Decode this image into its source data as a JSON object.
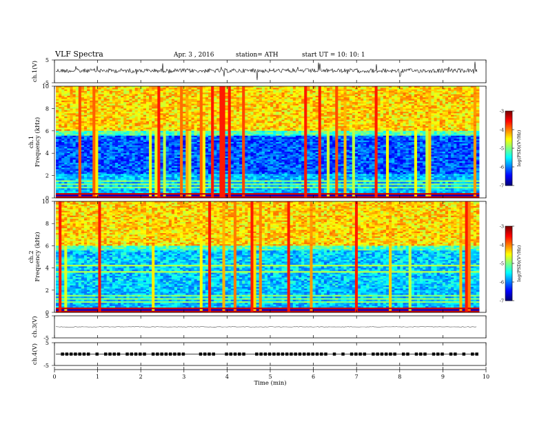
{
  "header": {
    "title": "VLF  Spectra",
    "date": "Apr. 3   , 2016",
    "station": "station= ATH",
    "start": "start  UT  =    10: 10: 1"
  },
  "chart_data": [
    {
      "panel": "ch1-waveform",
      "type": "line",
      "ylabel": "ch.1(V)",
      "yticks": [
        "5",
        "-5"
      ],
      "ylim": [
        -5,
        5
      ],
      "xlim": [
        0,
        10
      ],
      "baseline": 0.3,
      "signal_end_min": 9.8
    },
    {
      "panel": "ch1-spectrogram",
      "type": "heatmap",
      "ylabel_lines": [
        "ch.1",
        "Frequency  (kHz)"
      ],
      "yticks": [
        "0",
        "2",
        "4",
        "6",
        "8",
        "10"
      ],
      "ylim": [
        0,
        10
      ],
      "xlim": [
        0,
        10
      ],
      "colorbar": {
        "label": "log(PSD)(V²/Hz)",
        "ticks": [
          "-3",
          "-4",
          "-5",
          "-6",
          "-7"
        ],
        "range": [
          -7,
          -3
        ]
      }
    },
    {
      "panel": "ch2-spectrogram",
      "type": "heatmap",
      "ylabel_lines": [
        "ch.2",
        "Frequency  (kHz)"
      ],
      "yticks": [
        "0",
        "2",
        "4",
        "6",
        "8",
        "10"
      ],
      "ylim": [
        0,
        10
      ],
      "xlim": [
        0,
        10
      ],
      "colorbar": {
        "label": "log(PSD)(V²/Hz)",
        "ticks": [
          "-3",
          "-4",
          "-5",
          "-6",
          "-7"
        ],
        "range": [
          -7,
          -3
        ]
      }
    },
    {
      "panel": "ch3-waveform",
      "type": "line",
      "ylabel": "ch.3(V)",
      "yticks": [
        "5",
        "-5"
      ],
      "ylim": [
        -5,
        5
      ],
      "xlim": [
        0,
        10
      ],
      "baseline": 0
    },
    {
      "panel": "ch4-waveform",
      "type": "line",
      "ylabel": "ch.4(V)",
      "yticks": [
        "5",
        "-5"
      ],
      "ylim": [
        -5,
        5
      ],
      "xlim": [
        0,
        10
      ],
      "baseline": 0,
      "pulse_train": true
    },
    {
      "panel": "time-axis",
      "type": "line",
      "xlabel": "Time  (min)",
      "xticks": [
        "0",
        "1",
        "2",
        "3",
        "4",
        "5",
        "6",
        "7",
        "8",
        "9",
        "10"
      ],
      "xlim": [
        0,
        10
      ]
    }
  ]
}
